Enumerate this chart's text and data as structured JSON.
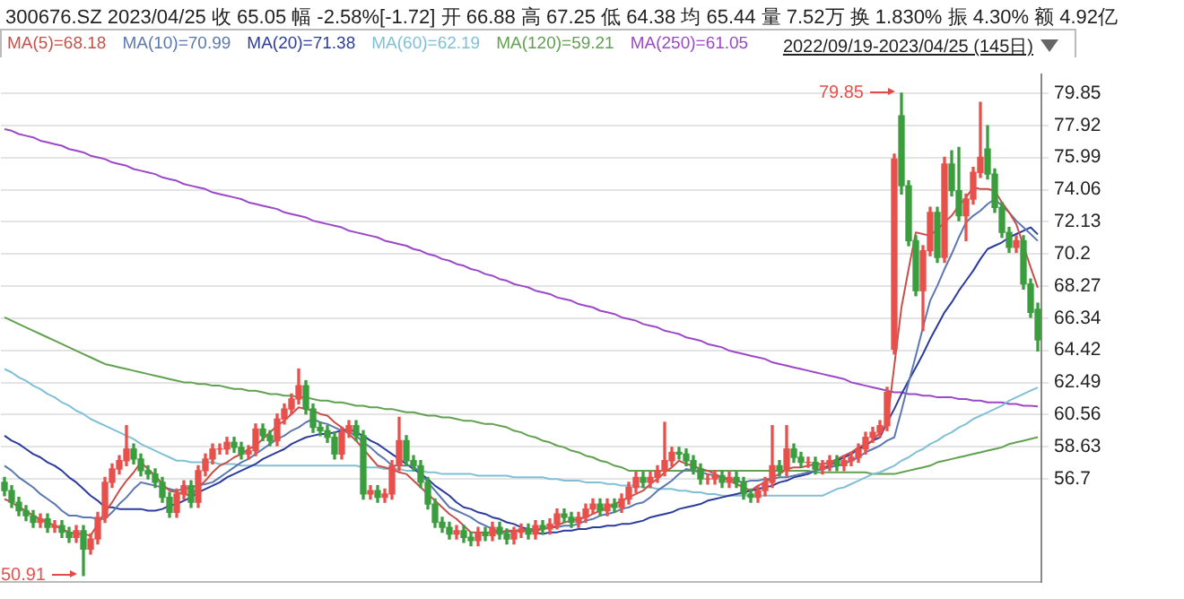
{
  "chart_data": {
    "type": "candlestick",
    "title": "300676.SZ 2023/04/25  收 65.05  幅 -2.58%[-1.72]  开 66.88  高 67.25  低 64.38  均 65.44  量 7.52万  换 1.830%  振 4.30%  额 4.92亿",
    "subtitle": "2022/09/19-2023/04/25 (145日)",
    "categories": [
      null,
      null,
      null,
      null,
      null,
      null,
      null,
      null,
      null,
      null,
      null,
      null,
      null,
      null,
      null,
      null,
      null,
      null,
      null,
      null,
      null,
      null,
      null,
      null,
      null,
      null,
      null,
      null,
      null,
      null,
      null,
      null,
      null,
      null,
      null,
      null,
      null,
      null,
      null,
      null,
      null,
      null,
      null,
      null,
      null,
      null,
      null,
      null,
      null,
      null,
      null,
      null,
      null,
      null,
      null,
      null,
      null,
      null,
      null,
      null,
      null,
      null,
      null,
      null,
      null,
      null,
      null,
      null,
      null,
      null,
      null,
      null,
      null,
      null,
      null,
      null,
      null,
      null,
      null,
      null,
      null,
      null,
      null,
      null,
      null,
      null,
      null,
      null,
      null,
      null,
      null,
      null,
      null,
      null,
      null,
      null,
      null,
      null,
      null,
      null,
      null,
      null,
      null,
      null,
      null,
      null,
      null,
      null,
      null,
      null,
      null,
      null,
      null,
      null,
      null,
      null,
      null,
      null,
      null,
      null,
      null,
      null,
      null,
      null,
      null,
      null,
      null,
      null,
      null,
      null,
      null,
      null,
      null,
      null,
      null,
      null,
      null,
      null,
      null,
      null,
      null,
      null,
      null,
      null,
      null
    ],
    "ohlc": [
      [
        56.5,
        56.8,
        55.7,
        56.0
      ],
      [
        56.0,
        56.3,
        55.0,
        55.3
      ],
      [
        55.3,
        55.6,
        54.5,
        54.8
      ],
      [
        54.8,
        55.1,
        54.2,
        54.5
      ],
      [
        54.5,
        54.8,
        53.8,
        54.1
      ],
      [
        54.1,
        54.6,
        53.8,
        54.3
      ],
      [
        54.3,
        54.6,
        53.5,
        53.8
      ],
      [
        53.8,
        54.2,
        53.5,
        53.9
      ],
      [
        53.9,
        54.2,
        53.2,
        53.5
      ],
      [
        53.5,
        53.8,
        52.9,
        53.2
      ],
      [
        53.2,
        53.9,
        52.9,
        53.6
      ],
      [
        53.6,
        53.9,
        50.91,
        52.5
      ],
      [
        52.5,
        53.4,
        52.2,
        53.1
      ],
      [
        53.1,
        54.7,
        52.8,
        54.4
      ],
      [
        54.4,
        56.8,
        54.1,
        56.5
      ],
      [
        56.5,
        57.6,
        56.2,
        57.3
      ],
      [
        57.3,
        58.1,
        57.0,
        57.8
      ],
      [
        57.8,
        59.9,
        57.5,
        58.5
      ],
      [
        58.5,
        58.8,
        57.6,
        57.9
      ],
      [
        57.9,
        58.2,
        56.9,
        57.2
      ],
      [
        57.2,
        57.5,
        56.7,
        57.0
      ],
      [
        57.0,
        57.3,
        56.2,
        56.5
      ],
      [
        56.5,
        56.8,
        55.3,
        55.6
      ],
      [
        55.6,
        55.9,
        54.4,
        54.7
      ],
      [
        54.7,
        56.1,
        54.4,
        55.8
      ],
      [
        55.8,
        56.6,
        55.5,
        56.3
      ],
      [
        56.3,
        56.6,
        55.0,
        55.3
      ],
      [
        55.3,
        57.5,
        55.0,
        57.2
      ],
      [
        57.2,
        58.2,
        56.9,
        57.9
      ],
      [
        57.9,
        58.8,
        57.6,
        58.5
      ],
      [
        58.5,
        58.8,
        58.2,
        58.5
      ],
      [
        58.5,
        59.2,
        58.2,
        58.9
      ],
      [
        58.9,
        59.2,
        58.3,
        58.6
      ],
      [
        58.6,
        58.9,
        57.9,
        58.2
      ],
      [
        58.2,
        58.7,
        57.9,
        58.4
      ],
      [
        58.4,
        60.0,
        58.1,
        59.7
      ],
      [
        59.7,
        60.0,
        59.0,
        59.3
      ],
      [
        59.3,
        59.6,
        58.7,
        59.0
      ],
      [
        59.0,
        60.6,
        58.7,
        60.3
      ],
      [
        60.3,
        61.2,
        60.0,
        60.9
      ],
      [
        60.9,
        61.8,
        60.6,
        61.5
      ],
      [
        61.5,
        63.3,
        61.2,
        62.3
      ],
      [
        62.3,
        62.6,
        60.6,
        60.9
      ],
      [
        60.9,
        61.2,
        59.5,
        59.8
      ],
      [
        59.8,
        60.1,
        59.3,
        59.6
      ],
      [
        59.6,
        59.9,
        58.9,
        59.2
      ],
      [
        59.2,
        59.5,
        57.9,
        58.2
      ],
      [
        58.2,
        59.8,
        57.9,
        59.5
      ],
      [
        59.5,
        60.2,
        59.2,
        59.9
      ],
      [
        59.9,
        60.2,
        59.0,
        59.3
      ],
      [
        59.3,
        59.6,
        55.5,
        55.8
      ],
      [
        55.8,
        56.3,
        55.5,
        56.0
      ],
      [
        56.0,
        56.3,
        55.3,
        55.6
      ],
      [
        55.6,
        56.1,
        55.3,
        55.8
      ],
      [
        55.8,
        57.8,
        55.5,
        57.5
      ],
      [
        57.5,
        60.4,
        57.2,
        59.0
      ],
      [
        59.0,
        59.3,
        57.5,
        57.8
      ],
      [
        57.8,
        58.1,
        57.2,
        57.5
      ],
      [
        57.5,
        57.8,
        56.2,
        56.5
      ],
      [
        56.5,
        56.8,
        54.9,
        55.2
      ],
      [
        55.2,
        55.5,
        53.8,
        54.1
      ],
      [
        54.1,
        54.4,
        53.5,
        53.8
      ],
      [
        53.8,
        54.1,
        53.1,
        53.4
      ],
      [
        53.4,
        53.9,
        53.1,
        53.6
      ],
      [
        53.6,
        53.9,
        52.9,
        53.2
      ],
      [
        53.2,
        53.5,
        52.7,
        53.0
      ],
      [
        53.0,
        53.8,
        52.7,
        53.5
      ],
      [
        53.5,
        53.8,
        53.0,
        53.3
      ],
      [
        53.3,
        54.1,
        53.0,
        53.8
      ],
      [
        53.8,
        54.1,
        53.1,
        53.4
      ],
      [
        53.4,
        53.7,
        52.8,
        53.1
      ],
      [
        53.1,
        53.8,
        52.8,
        53.5
      ],
      [
        53.5,
        54.0,
        53.2,
        53.7
      ],
      [
        53.7,
        54.0,
        53.1,
        53.4
      ],
      [
        53.4,
        54.2,
        53.1,
        53.9
      ],
      [
        53.9,
        54.2,
        53.4,
        53.7
      ],
      [
        53.7,
        54.3,
        53.4,
        54.0
      ],
      [
        54.0,
        54.9,
        53.7,
        54.6
      ],
      [
        54.6,
        54.9,
        54.1,
        54.4
      ],
      [
        54.4,
        54.7,
        53.8,
        54.1
      ],
      [
        54.1,
        54.7,
        53.8,
        54.4
      ],
      [
        54.4,
        55.2,
        54.1,
        54.9
      ],
      [
        54.9,
        55.5,
        54.6,
        55.2
      ],
      [
        55.2,
        55.5,
        54.5,
        54.8
      ],
      [
        54.8,
        55.5,
        54.5,
        55.2
      ],
      [
        55.2,
        55.5,
        54.7,
        55.0
      ],
      [
        55.0,
        55.8,
        54.7,
        55.5
      ],
      [
        55.5,
        56.5,
        55.2,
        56.2
      ],
      [
        56.2,
        57.1,
        55.9,
        56.8
      ],
      [
        56.8,
        57.1,
        56.2,
        56.5
      ],
      [
        56.5,
        57.1,
        56.2,
        56.8
      ],
      [
        56.8,
        57.5,
        56.5,
        57.2
      ],
      [
        57.2,
        60.1,
        56.9,
        57.8
      ],
      [
        57.8,
        58.6,
        57.5,
        58.3
      ],
      [
        58.3,
        58.6,
        57.9,
        58.2
      ],
      [
        58.2,
        58.5,
        57.5,
        57.8
      ],
      [
        57.8,
        58.1,
        57.0,
        57.3
      ],
      [
        57.3,
        57.6,
        56.4,
        56.7
      ],
      [
        56.7,
        57.0,
        56.4,
        56.7
      ],
      [
        56.7,
        57.2,
        56.4,
        56.9
      ],
      [
        56.9,
        57.2,
        56.2,
        56.5
      ],
      [
        56.5,
        57.1,
        56.2,
        56.8
      ],
      [
        56.8,
        57.1,
        56.2,
        56.5
      ],
      [
        56.5,
        56.8,
        55.5,
        55.8
      ],
      [
        55.8,
        56.1,
        55.3,
        55.6
      ],
      [
        55.6,
        56.3,
        55.3,
        56.0
      ],
      [
        56.0,
        56.8,
        55.7,
        56.5
      ],
      [
        56.5,
        59.9,
        56.2,
        57.5
      ],
      [
        57.5,
        57.8,
        56.9,
        57.2
      ],
      [
        57.2,
        59.9,
        56.9,
        58.5
      ],
      [
        58.5,
        58.8,
        57.7,
        58.0
      ],
      [
        58.0,
        58.3,
        57.4,
        57.7
      ],
      [
        57.7,
        58.0,
        57.4,
        57.7
      ],
      [
        57.7,
        58.0,
        57.0,
        57.3
      ],
      [
        57.3,
        57.8,
        57.0,
        57.5
      ],
      [
        57.5,
        58.1,
        57.2,
        57.8
      ],
      [
        57.8,
        58.1,
        57.2,
        57.5
      ],
      [
        57.5,
        58.1,
        57.2,
        57.8
      ],
      [
        57.8,
        58.3,
        57.5,
        58.0
      ],
      [
        58.0,
        58.8,
        57.7,
        58.5
      ],
      [
        58.5,
        59.5,
        58.2,
        59.2
      ],
      [
        59.2,
        59.8,
        58.9,
        59.5
      ],
      [
        59.5,
        60.2,
        59.2,
        59.9
      ],
      [
        59.9,
        62.2,
        59.6,
        61.9
      ],
      [
        64.5,
        76.2,
        64.2,
        75.9
      ],
      [
        78.5,
        79.85,
        73.8,
        74.3
      ],
      [
        74.3,
        74.6,
        70.7,
        71.0
      ],
      [
        71.0,
        71.3,
        67.7,
        68.0
      ],
      [
        68.0,
        70.7,
        65.6,
        70.4
      ],
      [
        70.4,
        73.0,
        70.1,
        72.7
      ],
      [
        72.7,
        73.0,
        69.7,
        70.0
      ],
      [
        70.0,
        76.0,
        69.7,
        75.6
      ],
      [
        75.6,
        76.4,
        73.7,
        74.0
      ],
      [
        74.0,
        76.6,
        72.2,
        72.5
      ],
      [
        72.5,
        73.8,
        71.0,
        73.5
      ],
      [
        73.5,
        75.4,
        73.2,
        75.1
      ],
      [
        75.1,
        79.3,
        74.8,
        76.0
      ],
      [
        76.5,
        77.9,
        74.7,
        75.0
      ],
      [
        75.0,
        75.3,
        72.7,
        73.0
      ],
      [
        73.0,
        73.3,
        71.2,
        71.5
      ],
      [
        71.5,
        71.8,
        70.3,
        70.6
      ],
      [
        70.6,
        71.3,
        70.3,
        71.0
      ],
      [
        71.0,
        71.3,
        68.1,
        68.4
      ],
      [
        68.4,
        68.7,
        66.4,
        66.7
      ],
      [
        66.88,
        67.25,
        64.38,
        65.05
      ]
    ],
    "series": [
      {
        "name": "MA(5)=68.18",
        "type": "line",
        "color": "#c8504a",
        "values": [
          55.5,
          55.3,
          55.0,
          54.8,
          54.5,
          54.3,
          54.1,
          53.9,
          53.7,
          53.5,
          53.4,
          53.4,
          53.3,
          54.0,
          54.7,
          55.3,
          56.0,
          56.6,
          57.1,
          57.7,
          57.3,
          56.9,
          56.4,
          56.0,
          55.9,
          55.8,
          55.7,
          56.2,
          56.6,
          57.1,
          57.5,
          57.7,
          58.0,
          58.2,
          58.5,
          58.7,
          59.1,
          59.5,
          59.9,
          60.2,
          60.6,
          61.0,
          60.9,
          60.8,
          60.6,
          60.5,
          60.1,
          59.8,
          59.4,
          59.0,
          58.5,
          58.0,
          57.5,
          57.4,
          57.3,
          57.1,
          57.0,
          56.6,
          56.2,
          55.8,
          55.4,
          55.0,
          54.6,
          54.3,
          53.9,
          53.5,
          53.5,
          53.5,
          53.5,
          53.5,
          53.6,
          53.6,
          53.6,
          53.6,
          53.6,
          53.7,
          53.8,
          53.9,
          54.1,
          54.2,
          54.3,
          54.4,
          54.6,
          54.8,
          55.0,
          55.2,
          55.4,
          55.6,
          55.8,
          56.0,
          56.4,
          56.7,
          57.1,
          57.4,
          57.8,
          57.6,
          57.5,
          57.3,
          57.2,
          57.0,
          56.8,
          56.6,
          56.4,
          56.2,
          56.0,
          56.3,
          56.5,
          56.8,
          57.0,
          57.3,
          57.4,
          57.4,
          57.5,
          57.6,
          57.6,
          57.7,
          57.9,
          58.1,
          58.3,
          58.6,
          58.8,
          59.0,
          59.5,
          60.0,
          63.5,
          67.0,
          69.3,
          71.5,
          71.4,
          71.3,
          71.7,
          72.1,
          72.5,
          73.1,
          73.6,
          74.2,
          74.1,
          74.1,
          74.0,
          73.3,
          72.7,
          72.0,
          70.7,
          69.4,
          68.18
        ]
      },
      {
        "name": "MA(10)=70.99",
        "type": "line",
        "color": "#5b78b0",
        "values": [
          57.5,
          57.2,
          56.8,
          56.5,
          56.2,
          55.8,
          55.5,
          55.2,
          54.8,
          54.5,
          54.5,
          54.4,
          54.4,
          54.3,
          54.3,
          54.7,
          55.2,
          55.6,
          56.1,
          56.5,
          56.4,
          56.3,
          56.2,
          56.1,
          56.0,
          56.1,
          56.2,
          56.3,
          56.4,
          56.5,
          56.8,
          57.1,
          57.4,
          57.7,
          57.9,
          58.2,
          58.5,
          58.8,
          59.1,
          59.3,
          59.6,
          59.8,
          60.1,
          60.3,
          60.1,
          60.0,
          59.8,
          59.6,
          59.5,
          59.3,
          58.9,
          58.6,
          58.2,
          57.9,
          57.5,
          57.5,
          57.5,
          57.5,
          57.0,
          56.5,
          56.0,
          55.5,
          55.0,
          54.8,
          54.6,
          54.4,
          54.1,
          53.9,
          53.7,
          53.5,
          53.5,
          53.6,
          53.6,
          53.7,
          53.7,
          53.7,
          53.8,
          53.8,
          53.9,
          53.9,
          54.0,
          54.2,
          54.3,
          54.5,
          54.6,
          54.7,
          54.9,
          55.0,
          55.2,
          55.3,
          55.6,
          56.0,
          56.3,
          56.6,
          57.0,
          57.3,
          57.2,
          57.1,
          57.0,
          56.9,
          56.8,
          56.7,
          56.6,
          56.5,
          56.6,
          56.6,
          56.7,
          56.7,
          56.8,
          56.8,
          56.9,
          57.0,
          57.1,
          57.2,
          57.3,
          57.4,
          57.5,
          57.6,
          57.8,
          58.0,
          58.3,
          58.5,
          58.7,
          59.0,
          59.2,
          60.8,
          62.5,
          64.1,
          65.8,
          67.4,
          68.3,
          69.3,
          70.2,
          71.2,
          72.1,
          72.5,
          72.8,
          73.2,
          73.5,
          73.1,
          72.7,
          72.2,
          71.8,
          71.4,
          70.99
        ]
      },
      {
        "name": "MA(20)=71.38",
        "type": "line",
        "color": "#2c3c9c",
        "values": [
          59.3,
          59.0,
          58.8,
          58.5,
          58.2,
          58.0,
          57.7,
          57.5,
          57.2,
          56.8,
          56.5,
          56.1,
          55.7,
          55.4,
          55.0,
          55.0,
          54.9,
          54.9,
          54.9,
          54.9,
          54.8,
          54.8,
          54.9,
          55.1,
          55.2,
          55.4,
          55.6,
          55.9,
          56.1,
          56.3,
          56.5,
          56.8,
          57.0,
          57.2,
          57.4,
          57.6,
          57.9,
          58.1,
          58.3,
          58.5,
          58.8,
          59.0,
          59.2,
          59.3,
          59.4,
          59.4,
          59.5,
          59.6,
          59.7,
          59.5,
          59.3,
          59.0,
          58.8,
          58.5,
          58.2,
          57.9,
          57.6,
          57.3,
          57.0,
          56.7,
          56.3,
          56.0,
          55.7,
          55.3,
          55.0,
          54.9,
          54.7,
          54.6,
          54.4,
          54.3,
          54.1,
          54.0,
          53.8,
          53.7,
          53.5,
          53.4,
          53.5,
          53.5,
          53.6,
          53.6,
          53.7,
          53.7,
          53.8,
          53.8,
          53.9,
          53.9,
          54.0,
          54.0,
          54.1,
          54.2,
          54.4,
          54.5,
          54.6,
          54.7,
          54.9,
          55.0,
          55.1,
          55.2,
          55.4,
          55.5,
          55.6,
          55.7,
          55.8,
          55.9,
          56.0,
          56.1,
          56.2,
          56.3,
          56.5,
          56.6,
          56.8,
          56.9,
          57.0,
          57.2,
          57.3,
          57.5,
          57.8,
          58.0,
          58.2,
          58.5,
          58.7,
          59.0,
          59.2,
          60.1,
          60.9,
          61.8,
          62.6,
          63.4,
          64.2,
          65.1,
          65.9,
          66.7,
          67.3,
          68.0,
          68.6,
          69.2,
          69.9,
          70.5,
          70.7,
          70.9,
          71.2,
          71.4,
          71.6,
          71.8,
          71.38
        ]
      },
      {
        "name": "MA(60)=62.19",
        "type": "line",
        "color": "#80c0d6",
        "values": [
          63.3,
          63.1,
          62.8,
          62.6,
          62.3,
          62.1,
          61.8,
          61.6,
          61.3,
          61.1,
          60.8,
          60.6,
          60.3,
          60.1,
          59.9,
          59.7,
          59.5,
          59.3,
          59.1,
          58.8,
          58.6,
          58.4,
          58.2,
          58.0,
          57.8,
          57.8,
          57.7,
          57.7,
          57.7,
          57.7,
          57.6,
          57.6,
          57.6,
          57.5,
          57.5,
          57.5,
          57.5,
          57.5,
          57.5,
          57.5,
          57.5,
          57.5,
          57.5,
          57.5,
          57.5,
          57.5,
          57.5,
          57.5,
          57.5,
          57.5,
          57.4,
          57.4,
          57.4,
          57.3,
          57.3,
          57.3,
          57.2,
          57.2,
          57.2,
          57.1,
          57.1,
          57.0,
          57.0,
          57.0,
          57.0,
          57.0,
          56.9,
          56.9,
          56.9,
          56.9,
          56.9,
          56.8,
          56.8,
          56.8,
          56.8,
          56.8,
          56.7,
          56.7,
          56.6,
          56.6,
          56.6,
          56.5,
          56.5,
          56.5,
          56.4,
          56.4,
          56.3,
          56.3,
          56.3,
          56.2,
          56.2,
          56.1,
          56.1,
          56.1,
          56.0,
          56.0,
          55.9,
          55.9,
          55.8,
          55.8,
          55.7,
          55.7,
          55.7,
          55.7,
          55.7,
          55.7,
          55.7,
          55.7,
          55.7,
          55.7,
          55.7,
          55.7,
          55.7,
          55.7,
          55.7,
          55.9,
          56.1,
          56.2,
          56.4,
          56.6,
          56.8,
          57.0,
          57.1,
          57.3,
          57.5,
          57.8,
          58.0,
          58.3,
          58.5,
          58.8,
          59.0,
          59.3,
          59.5,
          59.8,
          60.0,
          60.3,
          60.5,
          60.7,
          60.9,
          61.1,
          61.4,
          61.6,
          61.8,
          62.0,
          62.19
        ]
      },
      {
        "name": "MA(120)=59.21",
        "type": "line",
        "color": "#62a052",
        "values": [
          66.4,
          66.2,
          66.0,
          65.8,
          65.6,
          65.4,
          65.2,
          65.0,
          64.8,
          64.6,
          64.4,
          64.2,
          64.0,
          63.8,
          63.6,
          63.5,
          63.4,
          63.3,
          63.2,
          63.1,
          63.0,
          62.9,
          62.8,
          62.7,
          62.6,
          62.5,
          62.5,
          62.4,
          62.4,
          62.3,
          62.3,
          62.2,
          62.1,
          62.1,
          62.0,
          62.0,
          61.9,
          61.8,
          61.8,
          61.7,
          61.7,
          61.6,
          61.6,
          61.5,
          61.4,
          61.4,
          61.3,
          61.3,
          61.2,
          61.1,
          61.1,
          61.0,
          61.0,
          60.9,
          60.9,
          60.8,
          60.7,
          60.7,
          60.6,
          60.5,
          60.5,
          60.4,
          60.4,
          60.3,
          60.2,
          60.2,
          60.1,
          60.0,
          60.0,
          59.9,
          59.8,
          59.6,
          59.5,
          59.3,
          59.2,
          59.0,
          58.9,
          58.7,
          58.6,
          58.4,
          58.3,
          58.1,
          58.0,
          57.8,
          57.7,
          57.5,
          57.4,
          57.2,
          57.2,
          57.2,
          57.2,
          57.2,
          57.2,
          57.2,
          57.2,
          57.2,
          57.2,
          57.2,
          57.2,
          57.2,
          57.2,
          57.2,
          57.2,
          57.2,
          57.2,
          57.2,
          57.2,
          57.2,
          57.2,
          57.2,
          57.2,
          57.2,
          57.2,
          57.1,
          57.1,
          57.1,
          57.1,
          57.1,
          57.1,
          57.1,
          57.1,
          57.0,
          57.0,
          57.0,
          57.0,
          57.1,
          57.2,
          57.3,
          57.4,
          57.5,
          57.7,
          57.8,
          57.9,
          58.0,
          58.1,
          58.2,
          58.3,
          58.4,
          58.5,
          58.6,
          58.8,
          58.9,
          59.0,
          59.1,
          59.21
        ]
      },
      {
        "name": "MA(250)=61.05",
        "type": "line",
        "color": "#9c48c8",
        "values": [
          77.7,
          77.6,
          77.4,
          77.3,
          77.2,
          77.0,
          76.9,
          76.8,
          76.7,
          76.5,
          76.4,
          76.3,
          76.1,
          76.0,
          75.9,
          75.7,
          75.6,
          75.5,
          75.3,
          75.2,
          75.1,
          75.0,
          74.8,
          74.7,
          74.6,
          74.4,
          74.3,
          74.2,
          74.1,
          73.9,
          73.8,
          73.7,
          73.6,
          73.5,
          73.3,
          73.2,
          73.1,
          73.0,
          72.9,
          72.7,
          72.6,
          72.5,
          72.4,
          72.2,
          72.1,
          72.0,
          71.9,
          71.8,
          71.6,
          71.5,
          71.4,
          71.3,
          71.2,
          71.0,
          70.9,
          70.8,
          70.7,
          70.5,
          70.4,
          70.2,
          70.1,
          69.9,
          69.8,
          69.6,
          69.5,
          69.3,
          69.2,
          69.0,
          68.9,
          68.7,
          68.6,
          68.4,
          68.3,
          68.2,
          68.0,
          67.9,
          67.8,
          67.6,
          67.5,
          67.4,
          67.2,
          67.1,
          67.0,
          66.8,
          66.7,
          66.6,
          66.4,
          66.3,
          66.2,
          66.0,
          65.9,
          65.8,
          65.6,
          65.5,
          65.4,
          65.2,
          65.1,
          65.0,
          64.8,
          64.7,
          64.6,
          64.4,
          64.3,
          64.2,
          64.1,
          64.0,
          63.9,
          63.7,
          63.6,
          63.5,
          63.4,
          63.3,
          63.2,
          63.1,
          63.0,
          62.9,
          62.8,
          62.7,
          62.5,
          62.4,
          62.3,
          62.2,
          62.1,
          62.0,
          61.9,
          61.9,
          61.8,
          61.8,
          61.7,
          61.7,
          61.6,
          61.6,
          61.6,
          61.5,
          61.5,
          61.4,
          61.4,
          61.3,
          61.3,
          61.3,
          61.2,
          61.2,
          61.1,
          61.1,
          61.05
        ]
      }
    ],
    "ylim": [
      50.5,
      81
    ],
    "yticks": [
      79.85,
      77.92,
      75.99,
      74.06,
      72.13,
      70.2,
      68.27,
      66.34,
      64.42,
      62.49,
      60.56,
      58.63,
      56.7
    ],
    "tick_labels": "y",
    "grid": "y",
    "legend": "top left",
    "marker": "none",
    "annotations": [
      "79.85",
      "50.91"
    ]
  }
}
